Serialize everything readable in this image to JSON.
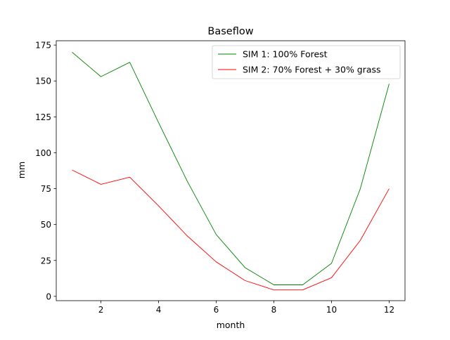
{
  "chart_data": {
    "type": "line",
    "title": "Baseflow",
    "xlabel": "month",
    "ylabel": "mm",
    "x": [
      1,
      2,
      3,
      4,
      5,
      6,
      7,
      8,
      9,
      10,
      11,
      12
    ],
    "xlim": [
      0.45,
      12.55
    ],
    "ylim": [
      -3,
      178
    ],
    "xticks": [
      2,
      4,
      6,
      8,
      10,
      12
    ],
    "yticks": [
      0,
      25,
      50,
      75,
      100,
      125,
      150,
      175
    ],
    "grid": false,
    "legend_position": "top-right",
    "series": [
      {
        "name": "SIM 1: 100% Forest",
        "color": "#008000",
        "values": [
          170,
          153,
          163,
          121,
          80,
          43,
          20,
          8,
          8,
          23,
          75,
          148
        ]
      },
      {
        "name": "SIM 2: 70% Forest + 30% grass",
        "color": "#ff0000",
        "values": [
          88,
          78,
          83,
          63,
          42,
          24,
          11,
          4.5,
          4.5,
          13,
          39,
          75
        ]
      }
    ]
  }
}
